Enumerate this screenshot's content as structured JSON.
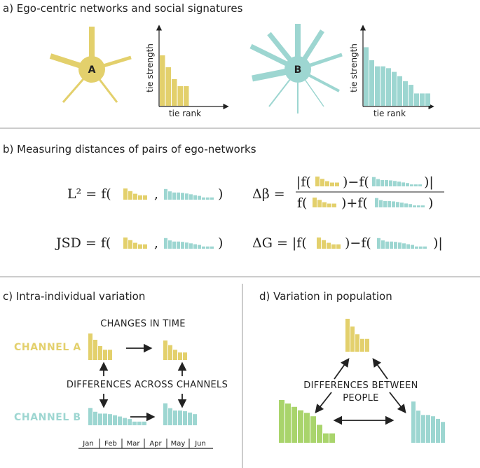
{
  "colors": {
    "a": "#e3d06c",
    "b": "#9dd6d1",
    "green": "#a9d46c",
    "text": "#222222",
    "rule": "#9a9a9a"
  },
  "panels": {
    "a": {
      "title": "a) Ego-centric networks and social signatures"
    },
    "b": {
      "title": "b) Measuring distances of pairs of ego-networks"
    },
    "c": {
      "title": "c) Intra-individual variation"
    },
    "d": {
      "title": "d) Variation in population"
    }
  },
  "ego": {
    "a_label": "A",
    "b_label": "B"
  },
  "axes": {
    "y_label": "tie strength",
    "x_label": "tie rank"
  },
  "signatures": {
    "a": [
      0.72,
      0.55,
      0.38,
      0.28,
      0.28
    ],
    "b": [
      0.95,
      0.74,
      0.64,
      0.64,
      0.61,
      0.55,
      0.48,
      0.4,
      0.34,
      0.2,
      0.2,
      0.2
    ]
  },
  "formulas": {
    "l2": {
      "lhs": "L² = f(",
      "sep": ",",
      "close": ")"
    },
    "jsd": {
      "lhs": "JSD = f(",
      "sep": ",",
      "close": ")"
    },
    "dbeta": {
      "lhs": "Δβ =",
      "num": "|f(▮)−f(▮)|",
      "den": "f(▮)+f(▮)"
    },
    "dg": {
      "lhs": "ΔG = |f(",
      "mid": ")−f(",
      "close": ")|"
    }
  },
  "panel_c": {
    "changes": "CHANGES IN TIME",
    "differences": "DIFFERENCES ACROSS CHANNELS",
    "channel_a": "CHANNEL A",
    "channel_b": "CHANNEL B",
    "months": [
      "Jan",
      "Feb",
      "Mar",
      "Apr",
      "May",
      "Jun"
    ]
  },
  "panel_d": {
    "line1": "DIFFERENCES BETWEEN",
    "line2": "PEOPLE"
  }
}
